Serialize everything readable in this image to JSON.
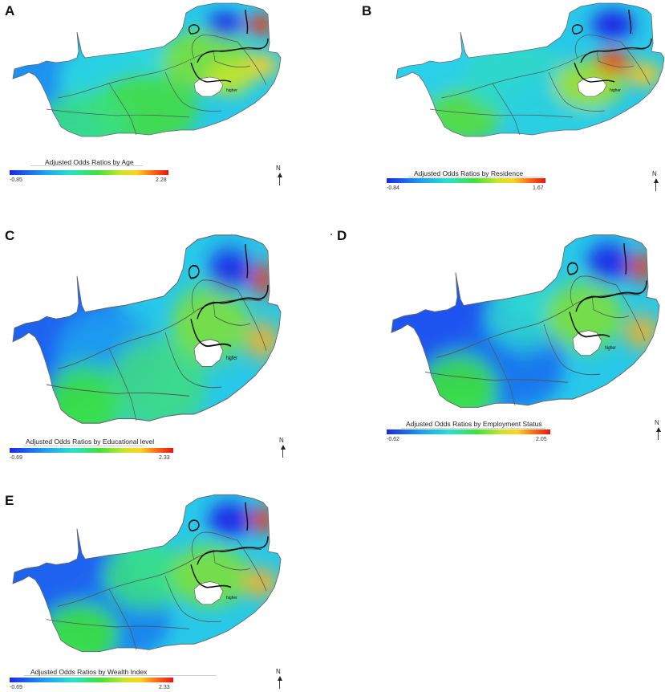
{
  "panels": [
    {
      "letter": "A",
      "legend_title": "Adjusted Odds Ratios by Age",
      "min": "-0.85",
      "max": "2.28",
      "map_label": "higher",
      "variant": "age"
    },
    {
      "letter": "B",
      "legend_title": "Adjusted Odds Ratios by Residence",
      "min": "-0.84",
      "max": "1.67",
      "map_label": "higher",
      "variant": "residence"
    },
    {
      "letter": "C",
      "legend_title": "Adjusted Odds Ratios by Educational level",
      "min": "-0.69",
      "max": "2.33",
      "map_label": "higher",
      "variant": "education"
    },
    {
      "letter": "D",
      "legend_title": "Adjusted Odds Ratios by Employment Status",
      "min": "-0.62",
      "max": "2.05",
      "map_label": "higher",
      "variant": "employment"
    },
    {
      "letter": "E",
      "legend_title": "Adjusted Odds Ratios by Wealth Index",
      "min": "-0.69",
      "max": "2.33",
      "map_label": "higher",
      "variant": "wealth"
    }
  ],
  "north_label": "N",
  "colors": {
    "low": "#1a28e6",
    "mid": "#3ce23c",
    "high": "#e61414"
  }
}
